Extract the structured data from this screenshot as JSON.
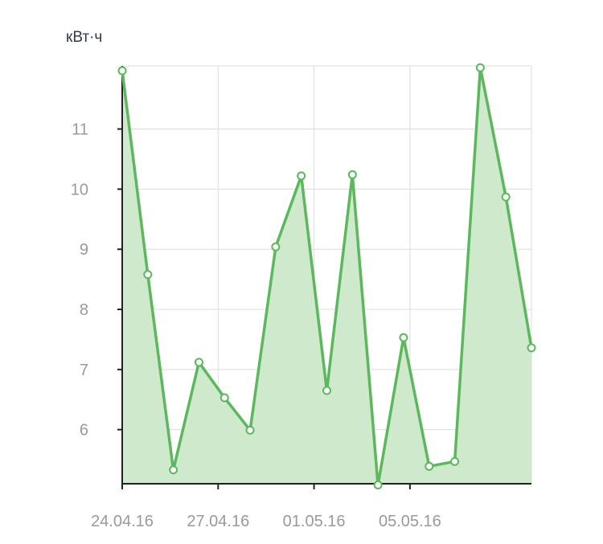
{
  "chart_data": {
    "type": "area",
    "ylabel": "кВт·ч",
    "ylim": [
      5.1,
      12.05
    ],
    "yticks": [
      6,
      7,
      8,
      9,
      10,
      11
    ],
    "x_tick_labels": [
      "24.04.16",
      "27.04.16",
      "01.05.16",
      "05.05.16"
    ],
    "x_tick_indices": [
      0,
      3.75,
      7.5,
      11.25
    ],
    "grid": true,
    "series": [
      {
        "values": [
          11.97,
          8.58,
          5.33,
          7.12,
          6.53,
          5.99,
          9.04,
          10.22,
          6.65,
          10.24,
          5.08,
          7.53,
          5.39,
          5.47,
          12.02,
          9.87,
          7.36
        ],
        "color": "#5cb85c",
        "fill": "#cfe9cd"
      }
    ]
  }
}
